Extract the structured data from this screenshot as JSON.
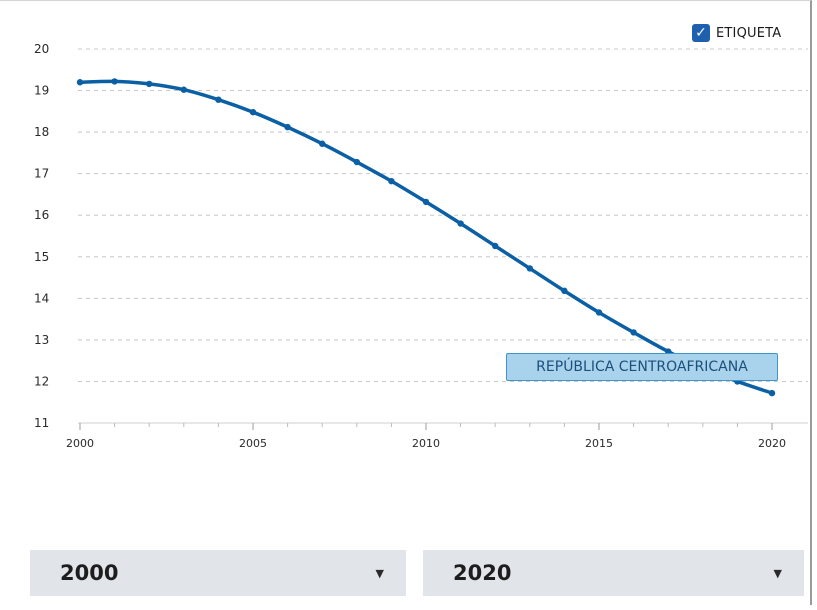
{
  "label_toggle": {
    "checked": true,
    "label": "ETIQUETA",
    "icon": "check-icon"
  },
  "series_label": "REPÚBLICA CENTROAFRICANA",
  "range_selectors": {
    "from": {
      "value": "2000",
      "icon": "caret-down-icon"
    },
    "to": {
      "value": "2020",
      "icon": "caret-down-icon"
    }
  },
  "colors": {
    "line": "#0b5fa5",
    "label_bg": "#a9d2ec",
    "label_border": "#3f95c9",
    "checkbox": "#1f5fb0"
  },
  "chart_data": {
    "type": "line",
    "title": "",
    "xlabel": "",
    "ylabel": "",
    "xlim": [
      2000,
      2020
    ],
    "ylim": [
      11,
      20
    ],
    "x_ticks": [
      "2000",
      "2005",
      "2010",
      "2015",
      "2020"
    ],
    "y_ticks": [
      "11",
      "12",
      "13",
      "14",
      "15",
      "16",
      "17",
      "18",
      "19",
      "20"
    ],
    "grid": "horizontal-dashed",
    "x": [
      2000,
      2001,
      2002,
      2003,
      2004,
      2005,
      2006,
      2007,
      2008,
      2009,
      2010,
      2011,
      2012,
      2013,
      2014,
      2015,
      2016,
      2017,
      2018,
      2019,
      2020
    ],
    "series": [
      {
        "name": "REPÚBLICA CENTROAFRICANA",
        "values": [
          19.2,
          19.22,
          19.16,
          19.02,
          18.78,
          18.48,
          18.12,
          17.72,
          17.28,
          16.82,
          16.32,
          15.8,
          15.26,
          14.72,
          14.18,
          13.66,
          13.18,
          12.72,
          12.32,
          12.0,
          11.72
        ]
      }
    ]
  }
}
